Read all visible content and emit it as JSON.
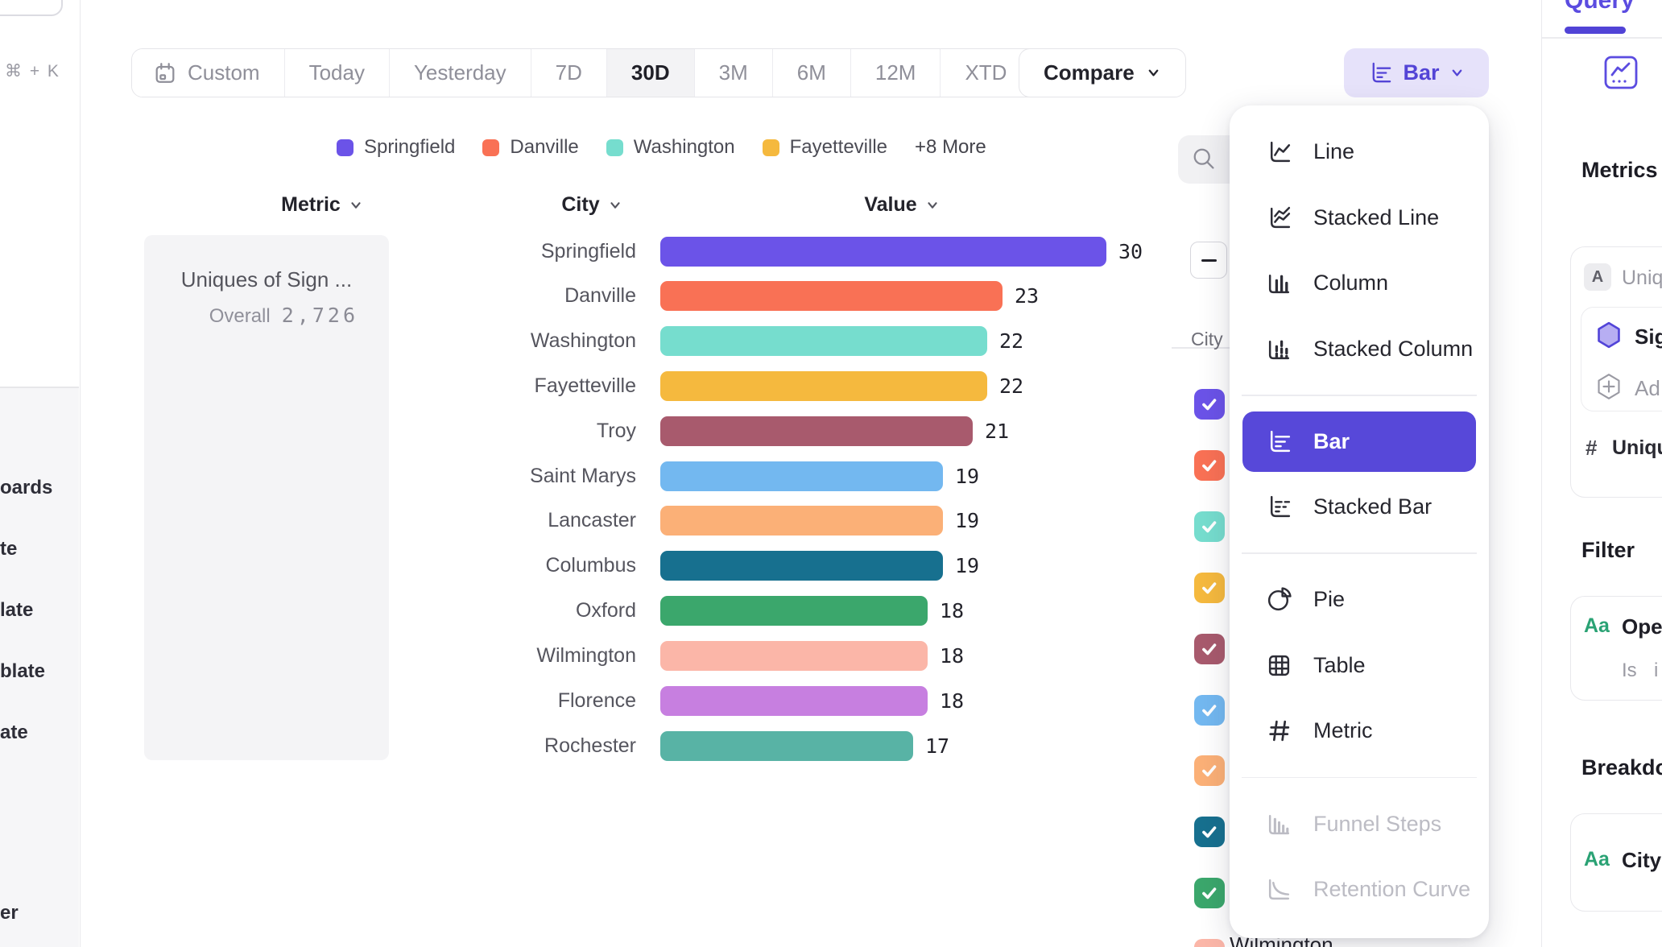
{
  "accent": "#5748d9",
  "sidebar": {
    "shortcut": "⌘ + K",
    "items": [
      "oards",
      "te",
      "late",
      "blate",
      "ate"
    ],
    "bottom_item": "er"
  },
  "toolbar": {
    "date_ranges": [
      {
        "label": "Custom",
        "icon": "calendar",
        "active": false
      },
      {
        "label": "Today",
        "active": false
      },
      {
        "label": "Yesterday",
        "active": false
      },
      {
        "label": "7D",
        "active": false
      },
      {
        "label": "30D",
        "active": true
      },
      {
        "label": "3M",
        "active": false
      },
      {
        "label": "6M",
        "active": false
      },
      {
        "label": "12M",
        "active": false
      },
      {
        "label": "XTD",
        "active": false,
        "chevron": true
      }
    ],
    "compare_label": "Compare",
    "chart_type_button_label": "Bar"
  },
  "legend": {
    "items": [
      {
        "label": "Springfield",
        "color": "#6B53E8"
      },
      {
        "label": "Danville",
        "color": "#F97155"
      },
      {
        "label": "Washington",
        "color": "#76DDCE"
      },
      {
        "label": "Fayetteville",
        "color": "#F5B93E"
      }
    ],
    "more_label": "+8 More"
  },
  "table_headers": {
    "metric": "Metric",
    "city": "City",
    "value": "Value"
  },
  "metric_card": {
    "title": "Uniques of Sign ...",
    "overall_label": "Overall",
    "overall_value": "2,726"
  },
  "chart_data": {
    "type": "bar",
    "orientation": "horizontal",
    "title": "Uniques of Sign ...",
    "overall": 2726,
    "categories": [
      "Springfield",
      "Danville",
      "Washington",
      "Fayetteville",
      "Troy",
      "Saint Marys",
      "Lancaster",
      "Columbus",
      "Oxford",
      "Wilmington",
      "Florence",
      "Rochester"
    ],
    "values": [
      30,
      23,
      22,
      22,
      21,
      19,
      19,
      19,
      18,
      18,
      18,
      17
    ],
    "colors": [
      "#6B53E8",
      "#F97155",
      "#76DDCE",
      "#F5B93E",
      "#A85A6D",
      "#73B8F0",
      "#FBB077",
      "#17708F",
      "#3BA76C",
      "#FBB6A8",
      "#C77FE0",
      "#58B3A5"
    ],
    "xlabel": "Value",
    "xlim": [
      0,
      30
    ],
    "legend_position": "top"
  },
  "selector_panel": {
    "city_label": "City",
    "checkbox_colors": [
      "#6B53E8",
      "#F97155",
      "#76DDCE",
      "#F5B93E",
      "#A85A6D",
      "#73B8F0",
      "#FBB077",
      "#17708F",
      "#3BA76C",
      "#FBB6A8"
    ],
    "partial_row_label": "Wilmington"
  },
  "chart_menu": {
    "items": [
      {
        "label": "Line",
        "icon": "line",
        "state": "normal"
      },
      {
        "label": "Stacked Line",
        "icon": "stackedline",
        "state": "normal"
      },
      {
        "label": "Column",
        "icon": "column",
        "state": "normal"
      },
      {
        "label": "Stacked Column",
        "icon": "stackedcolumn",
        "state": "normal"
      },
      {
        "divider": true
      },
      {
        "label": "Bar",
        "icon": "bar",
        "state": "selected"
      },
      {
        "label": "Stacked Bar",
        "icon": "stackedbar",
        "state": "normal"
      },
      {
        "divider": true
      },
      {
        "label": "Pie",
        "icon": "pie",
        "state": "normal"
      },
      {
        "label": "Table",
        "icon": "table",
        "state": "normal"
      },
      {
        "label": "Metric",
        "icon": "hash",
        "state": "normal"
      },
      {
        "divider": true
      },
      {
        "label": "Funnel Steps",
        "icon": "funnel",
        "state": "disabled"
      },
      {
        "label": "Retention Curve",
        "icon": "retention",
        "state": "disabled"
      }
    ]
  },
  "right_panel": {
    "tab_label": "Query",
    "metrics": {
      "header": "Metrics",
      "badge": "A",
      "badge_row_text": "Uniq",
      "event_row_text": "Sig",
      "add_row_text": "Ad",
      "hash": "#",
      "hash_row_text": "Uniqu"
    },
    "filter": {
      "header": "Filter",
      "aa": "Aa",
      "field_text": "Ope",
      "op_text": "Is",
      "op_value_text": "i"
    },
    "breakdown": {
      "header": "Breakdown",
      "aa": "Aa",
      "field_text": "City"
    }
  }
}
